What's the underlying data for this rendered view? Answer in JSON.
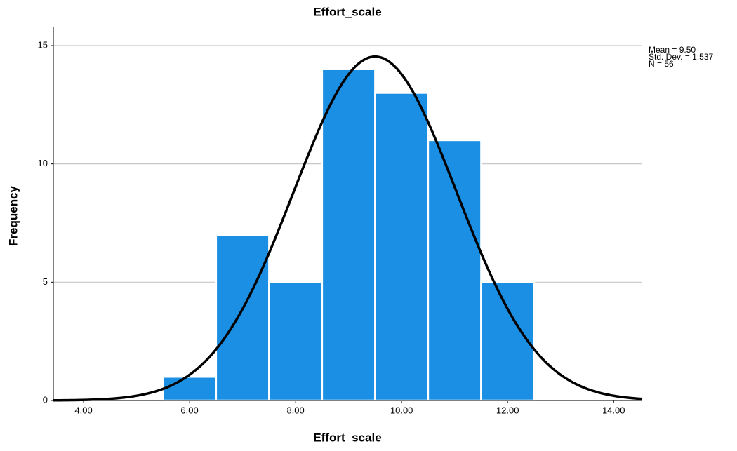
{
  "chart_data": {
    "type": "histogram",
    "title": "Effort_scale",
    "x_label": "Effort_scale",
    "y_label": "Frequency",
    "bins": [
      5.5,
      6.5,
      7.5,
      8.5,
      9.5,
      10.5,
      11.5,
      12.5
    ],
    "values": [
      1,
      7,
      5,
      14,
      13,
      11,
      5
    ],
    "color": "#1a8fe3",
    "curve_color": "#000000",
    "xlim": [
      3.43,
      14.54
    ],
    "ylim": [
      0,
      15.8
    ],
    "xticks": [
      {
        "value": 4,
        "label": "4.00"
      },
      {
        "value": 6,
        "label": "6.00"
      },
      {
        "value": 8,
        "label": "8.00"
      },
      {
        "value": 10,
        "label": "10.00"
      },
      {
        "value": 12,
        "label": "12.00"
      },
      {
        "value": 14,
        "label": "14.00"
      }
    ],
    "yticks": [
      0,
      5,
      10,
      15
    ],
    "grid": true,
    "stats": [
      {
        "value": 9.5,
        "label": "Mean = 9.50"
      },
      {
        "value": 1.537,
        "label": "Std. Dev. = 1.537"
      },
      {
        "value": 56,
        "label": "N = 56"
      }
    ]
  }
}
